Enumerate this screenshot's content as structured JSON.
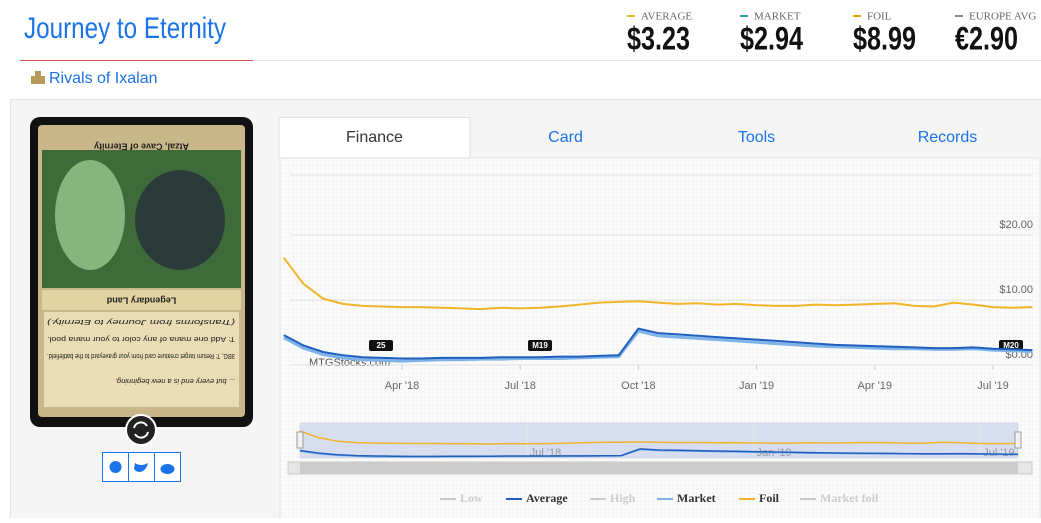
{
  "header": {
    "title": "Journey to Eternity",
    "set": "Rivals of Ixalan"
  },
  "prices": [
    {
      "label": "AVERAGE",
      "value": "$3.23",
      "color": "#f0b429"
    },
    {
      "label": "MARKET",
      "value": "$2.94",
      "color": "#2aa198"
    },
    {
      "label": "FOIL",
      "value": "$8.99",
      "color": "#f39c12"
    },
    {
      "label": "EUROPE AVG",
      "value": "€2.90",
      "color": "#888888"
    }
  ],
  "card": {
    "name": "Atzal, Cave of Eternity",
    "type_line": "Legendary Land",
    "text": [
      "(Transforms from Journey to Eternity.)",
      "T: Add one mana of any color to your mana pool.",
      "3BG, T: Return target creature card from your graveyard to the battlefield."
    ],
    "flavor": "... but every end is a new beginning."
  },
  "tabs": [
    "Finance",
    "Card",
    "Tools",
    "Records"
  ],
  "chart_data": {
    "type": "line",
    "watermark": "MTGStocks.com",
    "categories": [
      null,
      null,
      null,
      null,
      null,
      null,
      "Apr '18",
      null,
      null,
      null,
      null,
      null,
      "Jul '18",
      null,
      null,
      null,
      null,
      null,
      "Oct '18",
      null,
      null,
      null,
      null,
      null,
      "Jan '19",
      null,
      null,
      null,
      null,
      null,
      "Apr '19",
      null,
      null,
      null,
      null,
      null,
      "Jul '19",
      null,
      null
    ],
    "ylim": [
      0,
      30
    ],
    "yticks": [
      {
        "value": 0,
        "label": "$0.00"
      },
      {
        "value": 10,
        "label": "$10.00"
      },
      {
        "value": 20,
        "label": "$20.00"
      }
    ],
    "grid": true,
    "legend": "bottom",
    "annotations": [
      "25",
      "M19",
      "M20"
    ],
    "series": [
      {
        "name": "Low",
        "color": "#cccccc",
        "visible": false
      },
      {
        "name": "Average",
        "color": "#1f5fbf",
        "visible": true,
        "values": [
          4.6,
          3.0,
          2.0,
          1.5,
          1.2,
          1.1,
          1.0,
          1.0,
          1.1,
          1.1,
          1.1,
          1.2,
          1.2,
          1.2,
          1.3,
          1.3,
          1.4,
          1.5,
          5.6,
          4.9,
          4.7,
          4.5,
          4.3,
          4.1,
          3.9,
          3.7,
          3.5,
          3.3,
          3.1,
          3.0,
          2.9,
          2.8,
          2.7,
          2.6,
          2.6,
          2.7,
          2.5,
          2.4,
          2.3
        ]
      },
      {
        "name": "High",
        "color": "#cccccc",
        "visible": false
      },
      {
        "name": "Market",
        "color": "#7fb3e8",
        "visible": true,
        "values": [
          4.2,
          2.6,
          1.6,
          1.1,
          0.8,
          0.7,
          0.6,
          0.7,
          0.8,
          0.8,
          0.9,
          0.9,
          1.0,
          1.0,
          1.0,
          1.1,
          1.2,
          1.3,
          5.2,
          4.5,
          4.3,
          4.1,
          3.9,
          3.7,
          3.5,
          3.3,
          3.1,
          2.9,
          2.8,
          2.7,
          2.6,
          2.5,
          2.5,
          2.4,
          2.4,
          2.5,
          2.3,
          2.2,
          2.1
        ]
      },
      {
        "name": "Foil",
        "color": "#f0b429",
        "visible": true,
        "values": [
          16.5,
          12.5,
          10.2,
          9.4,
          9.1,
          9.0,
          8.9,
          8.9,
          8.8,
          8.7,
          8.6,
          8.8,
          8.7,
          8.8,
          9.0,
          9.3,
          9.6,
          9.7,
          9.8,
          9.6,
          9.4,
          9.5,
          9.3,
          9.4,
          9.2,
          9.1,
          9.1,
          9.3,
          9.2,
          9.3,
          9.4,
          9.5,
          9.1,
          9.0,
          9.6,
          9.3,
          8.9,
          8.8,
          8.9
        ]
      },
      {
        "name": "Market foil",
        "color": "#cccccc",
        "visible": false
      }
    ]
  }
}
